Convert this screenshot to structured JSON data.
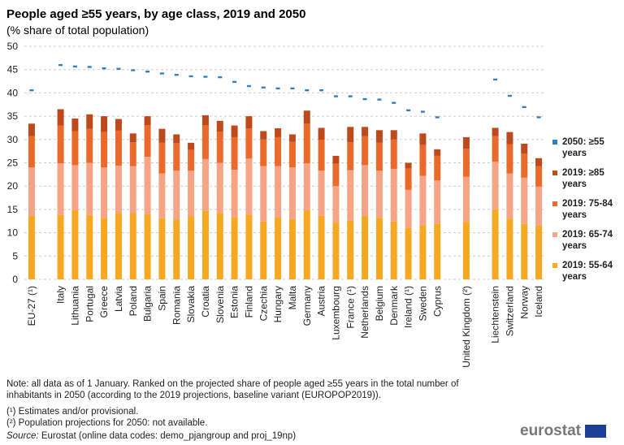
{
  "chart_data": {
    "type": "bar",
    "stacked": true,
    "title": "People aged ≥55 years, by age class, 2019 and 2050",
    "subtitle": "(% share of total population)",
    "categories": [
      "EU-27 (¹)",
      null,
      "Italy",
      "Lithuania",
      "Portugal",
      "Greece",
      "Latvia",
      "Poland",
      "Bulgaria",
      "Spain",
      "Romania",
      "Slovakia",
      "Croatia",
      "Slovenia",
      "Estonia",
      "Finland",
      "Czechia",
      "Hungary",
      "Malta",
      "Germany",
      "Austria",
      "Luxembourg",
      "France (¹)",
      "Netherlands",
      "Belgium",
      "Denmark",
      "Ireland (¹)",
      "Sweden",
      "Cyprus",
      null,
      "United Kingdom (²)",
      null,
      "Liechtenstein",
      "Switzerland",
      "Norway",
      "Iceland"
    ],
    "series": [
      {
        "name": "2019: 55-64 years",
        "color": "#f7a823",
        "values": [
          13.6,
          null,
          13.8,
          14.8,
          13.8,
          13.2,
          14.2,
          14.2,
          14.0,
          13.1,
          12.8,
          13.5,
          14.7,
          14.2,
          13.3,
          13.9,
          12.4,
          13.3,
          12.9,
          14.8,
          13.6,
          12.1,
          12.6,
          13.6,
          13.2,
          12.4,
          11.1,
          11.6,
          11.9,
          null,
          12.3,
          null,
          15.0,
          13.0,
          11.9,
          11.5
        ]
      },
      {
        "name": "2019: 65-74 years",
        "color": "#f5a585",
        "values": [
          10.4,
          null,
          11.1,
          9.7,
          11.2,
          10.8,
          10.2,
          10.1,
          12.3,
          9.6,
          10.5,
          9.8,
          11.1,
          10.8,
          10.2,
          12.0,
          11.9,
          11.0,
          11.1,
          10.1,
          9.7,
          7.9,
          10.8,
          10.9,
          10.1,
          11.3,
          8.1,
          10.6,
          9.3,
          null,
          9.7,
          null,
          10.2,
          9.7,
          9.9,
          8.4
        ]
      },
      {
        "name": "2019: 75-84 years",
        "color": "#ea6a2c",
        "values": [
          6.7,
          null,
          8.1,
          7.3,
          7.3,
          7.6,
          7.5,
          5.1,
          6.8,
          6.6,
          5.9,
          4.5,
          7.3,
          6.7,
          7.0,
          6.5,
          5.7,
          6.2,
          5.5,
          8.5,
          6.6,
          4.8,
          6.0,
          6.2,
          6.0,
          6.3,
          4.6,
          6.6,
          5.3,
          null,
          6.0,
          null,
          5.5,
          6.3,
          5.2,
          4.4
        ]
      },
      {
        "name": "2019: ≥85 years",
        "color": "#bd4a1c",
        "values": [
          2.7,
          null,
          3.5,
          2.7,
          3.1,
          3.4,
          2.5,
          1.9,
          1.9,
          3.0,
          1.9,
          1.5,
          2.1,
          2.3,
          2.5,
          2.6,
          1.8,
          1.9,
          1.6,
          2.8,
          2.6,
          1.7,
          3.3,
          2.0,
          2.7,
          2.0,
          1.2,
          2.5,
          1.4,
          null,
          2.5,
          null,
          1.8,
          2.6,
          2.1,
          1.7
        ]
      },
      {
        "name": "2050: ≥55 years",
        "color": "#2f7fc8",
        "type": "marker",
        "values": [
          40.6,
          null,
          46.0,
          45.7,
          45.6,
          45.3,
          45.2,
          44.9,
          44.6,
          44.2,
          43.9,
          43.6,
          43.5,
          43.4,
          42.4,
          41.5,
          41.2,
          41.0,
          41.0,
          40.6,
          40.6,
          39.3,
          39.3,
          38.7,
          38.6,
          37.9,
          36.3,
          36.0,
          34.8,
          null,
          null,
          null,
          42.9,
          39.4,
          37.0,
          34.8
        ]
      }
    ],
    "ylim": [
      0,
      50
    ],
    "yticks": [
      0,
      5,
      10,
      15,
      20,
      25,
      30,
      35,
      40,
      45,
      50
    ],
    "grid": true,
    "legend_position": "right",
    "notes": [
      "Note: all data as of 1 January. Ranked on the projected share of people aged ≥55 years in the total number of inhabitants in 2050 (according to the 2019 projections, baseline variant (EUROPOP2019)).",
      "(¹) Estimates and/or provisional.",
      "(²) Population projections for 2050: not available."
    ],
    "source_label": "Source:",
    "source_text": "Eurostat (online data codes: demo_pjangroup and proj_19np)",
    "logo": "eurostat"
  }
}
